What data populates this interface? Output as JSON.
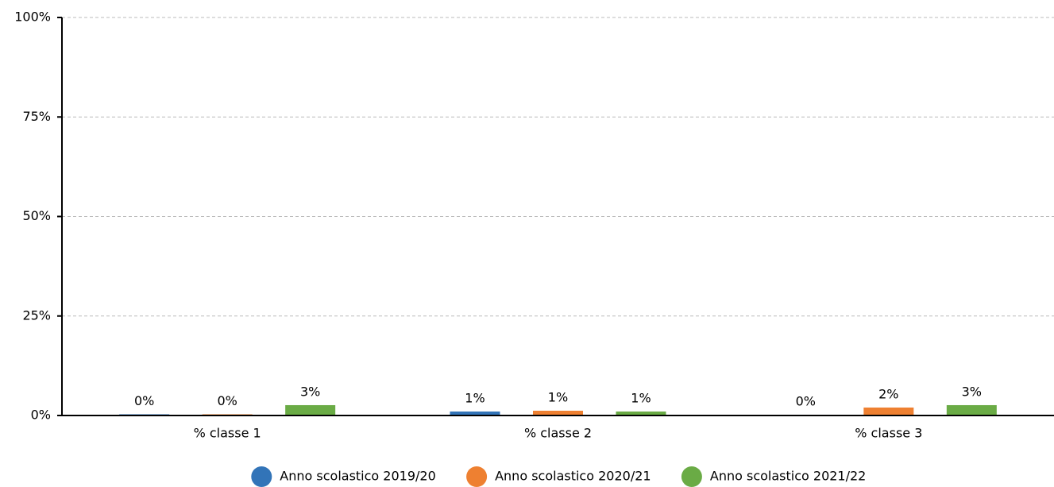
{
  "chart_data": {
    "type": "bar",
    "categories": [
      "% classe 1",
      "% classe 2",
      "% classe 3"
    ],
    "series": [
      {
        "name": "Anno scolastico 2019/20",
        "color": "#3274b8",
        "values": [
          0.3,
          1.0,
          0.2
        ],
        "value_labels": [
          "0%",
          "1%",
          "0%"
        ]
      },
      {
        "name": "Anno scolastico 2020/21",
        "color": "#ee8031",
        "values": [
          0.3,
          1.2,
          2.0
        ],
        "value_labels": [
          "0%",
          "1%",
          "2%"
        ]
      },
      {
        "name": "Anno scolastico 2021/22",
        "color": "#6aab45",
        "values": [
          2.6,
          1.0,
          2.6
        ],
        "value_labels": [
          "3%",
          "1%",
          "3%"
        ]
      }
    ],
    "ylim": [
      0,
      100
    ],
    "yticks": [
      {
        "value": 0,
        "label": "0%"
      },
      {
        "value": 25,
        "label": "25%"
      },
      {
        "value": 50,
        "label": "50%"
      },
      {
        "value": 75,
        "label": "75%"
      },
      {
        "value": 100,
        "label": "100%"
      }
    ],
    "grid": true,
    "legend": "bottom"
  }
}
